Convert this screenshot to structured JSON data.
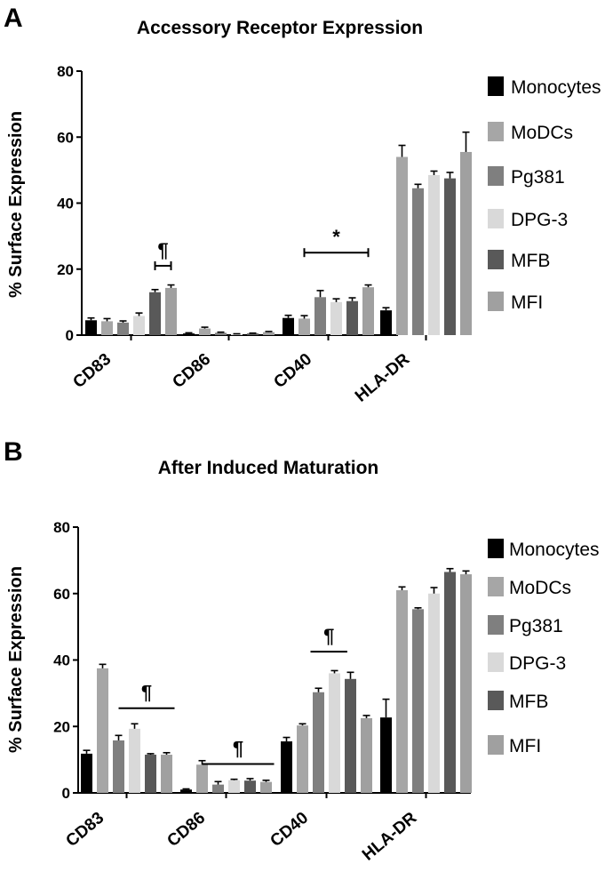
{
  "colors": {
    "Monocytes": "#000000",
    "MoDCs": "#a6a6a6",
    "Pg381": "#7f7f7f",
    "DPG-3": "#d9d9d9",
    "MFB": "#595959",
    "MFI": "#a0a0a0"
  },
  "chart_data": [
    {
      "type": "bar",
      "panel": "A",
      "title": "Accessory Receptor Expression",
      "ylabel": "% Surface Expression",
      "xlabel": "",
      "ylim": [
        0,
        80
      ],
      "yticks": [
        0,
        20,
        40,
        60,
        80
      ],
      "categories": [
        "CD83",
        "CD86",
        "CD40",
        "HLA-DR"
      ],
      "legend": [
        "Monocytes",
        "MoDCs",
        "Pg381",
        "DPG-3",
        "MFB",
        "MFI"
      ],
      "legend_position": "right",
      "series": [
        {
          "name": "Monocytes",
          "values": [
            4.5,
            0.5,
            5.2,
            7.5
          ],
          "errors": [
            0.7,
            0.2,
            0.8,
            0.8
          ]
        },
        {
          "name": "MoDCs",
          "values": [
            4.2,
            2.0,
            5.0,
            54.0
          ],
          "errors": [
            0.8,
            0.4,
            0.9,
            3.5
          ]
        },
        {
          "name": "Pg381",
          "values": [
            3.8,
            0.7,
            11.5,
            44.5
          ],
          "errors": [
            0.5,
            0.2,
            2.0,
            1.2
          ]
        },
        {
          "name": "DPG-3",
          "values": [
            5.8,
            0.3,
            10.0,
            48.5
          ],
          "errors": [
            0.9,
            0.1,
            1.0,
            1.2
          ]
        },
        {
          "name": "MFB",
          "values": [
            13.0,
            0.5,
            10.3,
            47.5
          ],
          "errors": [
            0.8,
            0.1,
            1.0,
            1.8
          ]
        },
        {
          "name": "MFI",
          "values": [
            14.3,
            0.9,
            14.5,
            55.5
          ],
          "errors": [
            0.9,
            0.2,
            0.7,
            6.0
          ]
        }
      ],
      "annotations": [
        {
          "symbol": "¶",
          "category": "CD83",
          "from_series": 4,
          "to_series": 5,
          "y": 21
        },
        {
          "symbol": "*",
          "category": "CD40",
          "from_series": 1,
          "to_series": 5,
          "y": 25
        }
      ]
    },
    {
      "type": "bar",
      "panel": "B",
      "title": "After Induced Maturation",
      "ylabel": "% Surface Expression",
      "xlabel": "",
      "ylim": [
        0,
        80
      ],
      "yticks": [
        0,
        20,
        40,
        60,
        80
      ],
      "categories": [
        "CD83",
        "CD86",
        "CD40",
        "HLA-DR"
      ],
      "legend": [
        "Monocytes",
        "MoDCs",
        "Pg381",
        "DPG-3",
        "MFB",
        "MFI"
      ],
      "legend_position": "right",
      "series": [
        {
          "name": "Monocytes",
          "values": [
            11.8,
            1.0,
            15.5,
            22.7
          ],
          "errors": [
            1.0,
            0.2,
            1.2,
            5.5
          ]
        },
        {
          "name": "MoDCs",
          "values": [
            37.5,
            8.5,
            20.3,
            61.0
          ],
          "errors": [
            1.2,
            1.2,
            0.5,
            1.0
          ]
        },
        {
          "name": "Pg381",
          "values": [
            15.8,
            2.5,
            30.3,
            55.3
          ],
          "errors": [
            1.5,
            0.9,
            1.2,
            0.4
          ]
        },
        {
          "name": "DPG-3",
          "values": [
            19.3,
            3.8,
            36.0,
            60.0
          ],
          "errors": [
            1.5,
            0.3,
            0.8,
            1.8
          ]
        },
        {
          "name": "MFB",
          "values": [
            11.5,
            3.7,
            34.3,
            66.5
          ],
          "errors": [
            0.3,
            0.6,
            2.0,
            1.0
          ]
        },
        {
          "name": "MFI",
          "values": [
            11.5,
            3.3,
            22.5,
            65.8
          ],
          "errors": [
            0.6,
            0.5,
            0.8,
            1.0
          ]
        }
      ],
      "annotations": [
        {
          "symbol": "¶",
          "category": "CD83",
          "from_series": 2,
          "to_series": 5.5,
          "y": 25.5
        },
        {
          "symbol": "¶",
          "category": "CD86",
          "from_series": 1,
          "to_series": 5.5,
          "y": 8.7
        },
        {
          "symbol": "¶",
          "category": "CD40",
          "from_series": 1.5,
          "to_series": 3.8,
          "y": 42.5
        }
      ]
    }
  ]
}
